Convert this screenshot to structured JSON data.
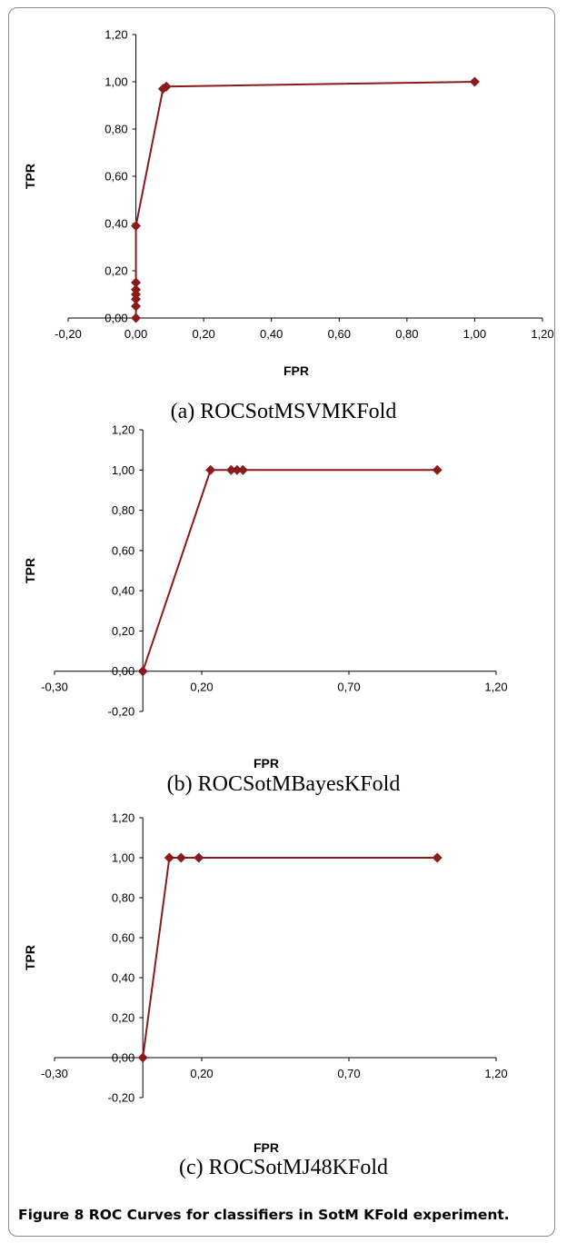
{
  "figure": {
    "caption_label": "Figure 8",
    "caption_text": "ROC Curves for classifiers in SotM KFold experiment."
  },
  "chart_data": [
    {
      "type": "line",
      "subcaption": "(a) ROCSotMSVMKFold",
      "xlabel": "FPR",
      "ylabel": "TPR",
      "xlim": [
        -0.2,
        1.2
      ],
      "ylim": [
        0.0,
        1.2
      ],
      "xticks": [
        -0.2,
        0.0,
        0.2,
        0.4,
        0.6,
        0.8,
        1.0,
        1.2
      ],
      "xtick_labels": [
        "-0,20",
        "0,00",
        "0,20",
        "0,40",
        "0,60",
        "0,80",
        "1,00",
        "1,20"
      ],
      "yticks": [
        0.0,
        0.2,
        0.4,
        0.6,
        0.8,
        1.0,
        1.2
      ],
      "ytick_labels": [
        "0,00",
        "0,20",
        "0,40",
        "0,60",
        "0,80",
        "1,00",
        "1,20"
      ],
      "color": "#8b1a1a",
      "series": [
        {
          "x": [
            0.0,
            0.0,
            0.0,
            0.0,
            0.0,
            0.0,
            0.0,
            0.08,
            0.09,
            1.0
          ],
          "y": [
            0.0,
            0.05,
            0.08,
            0.1,
            0.12,
            0.15,
            0.39,
            0.97,
            0.98,
            1.0
          ]
        }
      ]
    },
    {
      "type": "line",
      "subcaption": "(b) ROCSotMBayesKFold",
      "xlabel": "FPR",
      "ylabel": "TPR",
      "xlim": [
        -0.3,
        1.2
      ],
      "ylim": [
        -0.2,
        1.2
      ],
      "xticks": [
        -0.3,
        0.2,
        0.7,
        1.2
      ],
      "xtick_labels": [
        "-0,30",
        "0,20",
        "0,70",
        "1,20"
      ],
      "yticks": [
        -0.2,
        0.0,
        0.2,
        0.4,
        0.6,
        0.8,
        1.0,
        1.2
      ],
      "ytick_labels": [
        "-0,20",
        "0,00",
        "0,20",
        "0,40",
        "0,60",
        "0,80",
        "1,00",
        "1,20"
      ],
      "color": "#8b1a1a",
      "series": [
        {
          "x": [
            0.0,
            0.23,
            0.3,
            0.32,
            0.34,
            1.0
          ],
          "y": [
            0.0,
            1.0,
            1.0,
            1.0,
            1.0,
            1.0
          ]
        }
      ]
    },
    {
      "type": "line",
      "subcaption": "(c) ROCSotMJ48KFold",
      "xlabel": "FPR",
      "ylabel": "TPR",
      "xlim": [
        -0.3,
        1.2
      ],
      "ylim": [
        -0.2,
        1.2
      ],
      "xticks": [
        -0.3,
        0.2,
        0.7,
        1.2
      ],
      "xtick_labels": [
        "-0,30",
        "0,20",
        "0,70",
        "1,20"
      ],
      "yticks": [
        -0.2,
        0.0,
        0.2,
        0.4,
        0.6,
        0.8,
        1.0,
        1.2
      ],
      "ytick_labels": [
        "-0,20",
        "0,00",
        "0,20",
        "0,40",
        "0,60",
        "0,80",
        "1,00",
        "1,20"
      ],
      "color": "#8b1a1a",
      "series": [
        {
          "x": [
            0.0,
            0.09,
            0.13,
            0.19,
            1.0
          ],
          "y": [
            0.0,
            1.0,
            1.0,
            1.0,
            1.0
          ]
        }
      ]
    }
  ]
}
